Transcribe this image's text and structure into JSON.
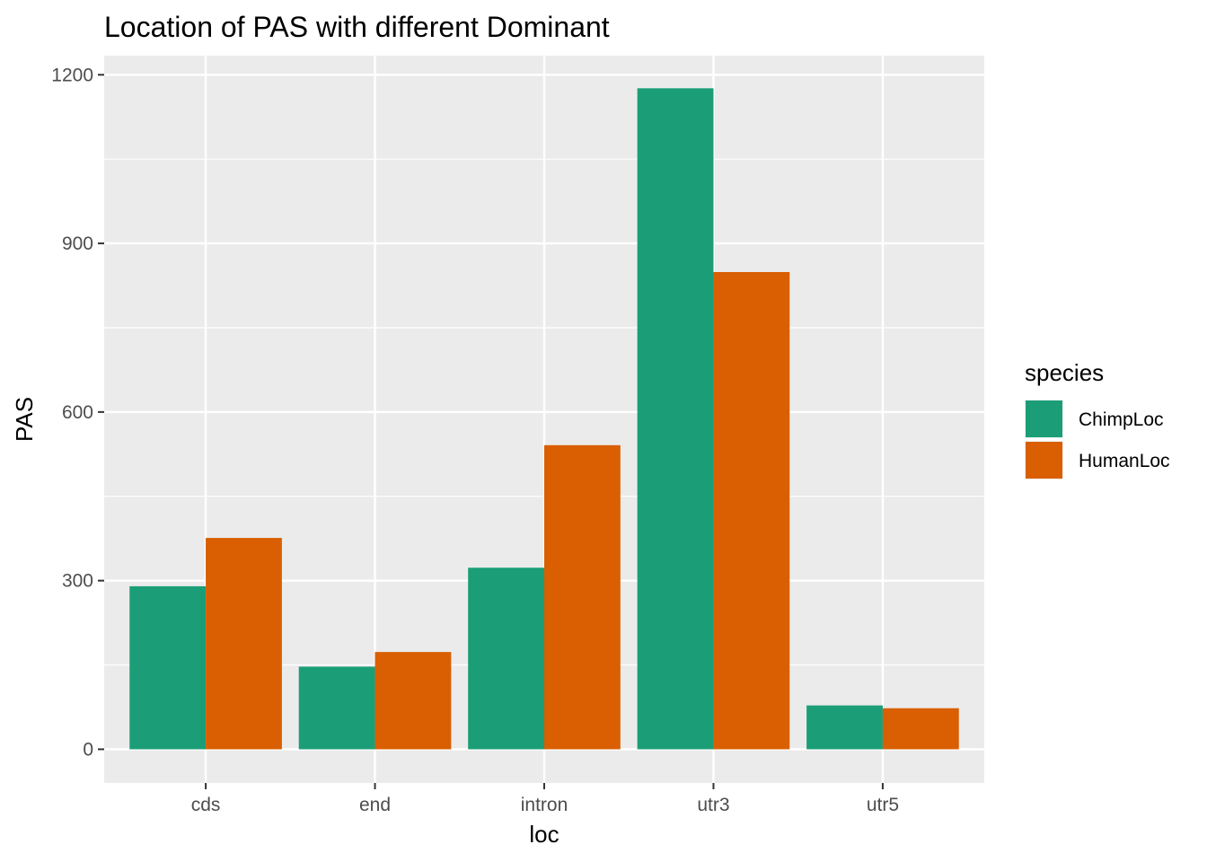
{
  "chart_data": {
    "type": "bar",
    "title": "Location of PAS with different Dominant",
    "xlabel": "loc",
    "ylabel": "PAS",
    "categories": [
      "cds",
      "end",
      "intron",
      "utr3",
      "utr5"
    ],
    "series": [
      {
        "name": "ChimpLoc",
        "color": "#1b9e77",
        "values": [
          290,
          147,
          323,
          1176,
          78
        ]
      },
      {
        "name": "HumanLoc",
        "color": "#d95f02",
        "values": [
          376,
          173,
          541,
          849,
          73
        ]
      }
    ],
    "ylim": [
      -60,
      1234
    ],
    "yticks": [
      0,
      300,
      600,
      900,
      1200
    ],
    "yticks_labels": [
      "0",
      "300",
      "600",
      "900",
      "1200"
    ],
    "legend_title": "species",
    "legend_position": "right",
    "grid": true,
    "panel_background": "#ebebeb"
  }
}
